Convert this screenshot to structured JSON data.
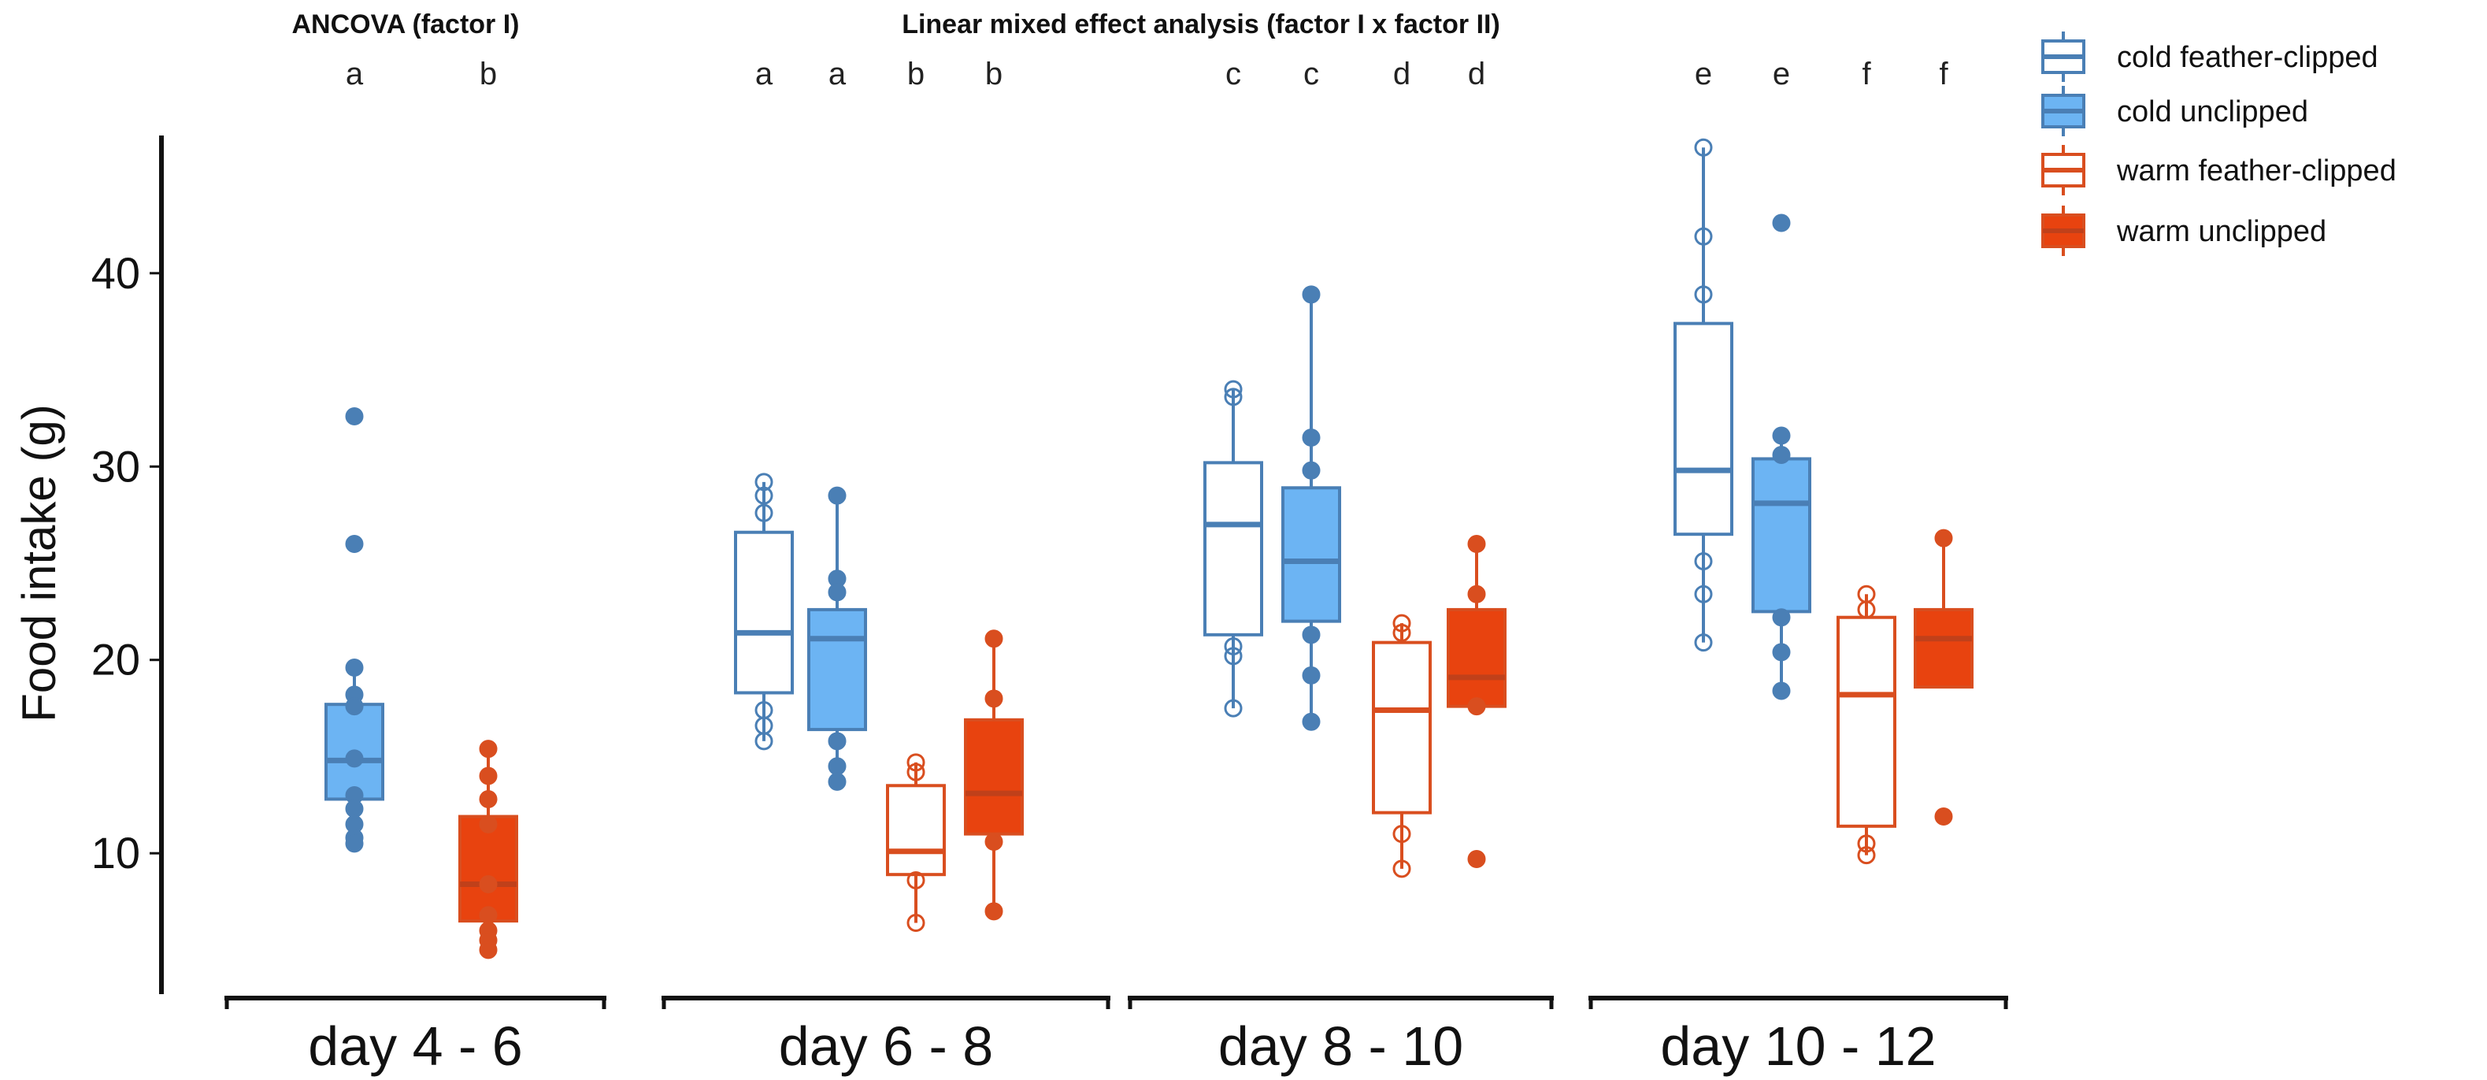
{
  "chart_data": {
    "type": "box",
    "title_left": "ANCOVA (factor I)",
    "title_right": "Linear mixed effect analysis (factor I x factor II)",
    "ylabel": "Food intake (g)",
    "xlabel": "",
    "ylim": [
      3,
      47
    ],
    "yticks": [
      10,
      20,
      30,
      40
    ],
    "colors": {
      "cold": "#4a7fb5",
      "cold_fill": "#6cb4f3",
      "warm": "#d94e1f",
      "warm_fill": "#e8430f"
    },
    "legend": [
      {
        "label": "cold  feather-clipped",
        "temp": "cold",
        "clipped": true
      },
      {
        "label": "cold  unclipped",
        "temp": "cold",
        "clipped": false
      },
      {
        "label": "warm  feather-clipped",
        "temp": "warm",
        "clipped": true
      },
      {
        "label": "warm  unclipped",
        "temp": "warm",
        "clipped": false
      }
    ],
    "groups": [
      {
        "label": "day 4 - 6",
        "boxes": [
          {
            "temp": "cold",
            "clipped": false,
            "letter": "a",
            "min": 10.5,
            "q1": 12.8,
            "median": 14.8,
            "q3": 17.7,
            "max": 19.7,
            "points": [
              32.6,
              26.0,
              19.6,
              18.2,
              17.6,
              14.9,
              13.0,
              12.3,
              11.5,
              10.8,
              10.5
            ]
          },
          {
            "temp": "warm",
            "clipped": false,
            "letter": "b",
            "min": 5.0,
            "q1": 6.5,
            "median": 8.4,
            "q3": 11.9,
            "max": 15.4,
            "points": [
              15.4,
              14.0,
              12.8,
              11.5,
              8.4,
              6.8,
              6.0,
              5.5,
              5.0
            ]
          }
        ]
      },
      {
        "label": "day 6 - 8",
        "boxes": [
          {
            "temp": "cold",
            "clipped": true,
            "letter": "a",
            "min": 15.8,
            "q1": 18.3,
            "median": 21.4,
            "q3": 26.6,
            "max": 29.2,
            "points": [
              29.2,
              28.5,
              27.6,
              17.4,
              16.6,
              15.8
            ]
          },
          {
            "temp": "cold",
            "clipped": false,
            "letter": "a",
            "min": 13.7,
            "q1": 16.4,
            "median": 21.1,
            "q3": 22.6,
            "max": 28.5,
            "points": [
              28.5,
              24.2,
              23.5,
              15.8,
              14.5,
              13.7
            ]
          },
          {
            "temp": "warm",
            "clipped": true,
            "letter": "b",
            "min": 6.4,
            "q1": 8.9,
            "median": 10.1,
            "q3": 13.5,
            "max": 14.7,
            "points": [
              14.7,
              14.2,
              8.6,
              6.4
            ]
          },
          {
            "temp": "warm",
            "clipped": false,
            "letter": "b",
            "min": 7.0,
            "q1": 11.0,
            "median": 13.1,
            "q3": 16.9,
            "max": 21.1,
            "points": [
              21.1,
              18.0,
              10.6,
              7.0
            ]
          }
        ]
      },
      {
        "label": "day 8 - 10",
        "boxes": [
          {
            "temp": "cold",
            "clipped": true,
            "letter": "c",
            "min": 17.5,
            "q1": 21.3,
            "median": 27.0,
            "q3": 30.2,
            "max": 34.0,
            "points": [
              34.0,
              33.6,
              20.7,
              20.2,
              17.5
            ]
          },
          {
            "temp": "cold",
            "clipped": false,
            "letter": "c",
            "min": 16.8,
            "q1": 22.0,
            "median": 25.1,
            "q3": 28.9,
            "max": 38.9,
            "points": [
              38.9,
              31.5,
              29.8,
              21.3,
              19.2,
              16.8
            ]
          },
          {
            "temp": "warm",
            "clipped": true,
            "letter": "d",
            "min": 9.2,
            "q1": 12.1,
            "median": 17.4,
            "q3": 20.9,
            "max": 21.9,
            "points": [
              21.9,
              21.4,
              11.0,
              9.2
            ]
          },
          {
            "temp": "warm",
            "clipped": false,
            "letter": "d",
            "min": 17.3,
            "q1": 17.6,
            "median": 19.1,
            "q3": 22.6,
            "max": 26.0,
            "points": [
              26.0,
              23.4,
              17.6,
              9.7
            ]
          }
        ]
      },
      {
        "label": "day 10 - 12",
        "boxes": [
          {
            "temp": "cold",
            "clipped": true,
            "letter": "e",
            "min": 20.9,
            "q1": 26.5,
            "median": 29.8,
            "q3": 37.4,
            "max": 46.5,
            "points": [
              46.5,
              41.9,
              38.9,
              25.1,
              23.4,
              20.9
            ]
          },
          {
            "temp": "cold",
            "clipped": false,
            "letter": "e",
            "min": 18.4,
            "q1": 22.5,
            "median": 28.1,
            "q3": 30.4,
            "max": 31.6,
            "points": [
              42.6,
              31.6,
              30.6,
              22.2,
              20.4,
              18.4
            ]
          },
          {
            "temp": "warm",
            "clipped": true,
            "letter": "f",
            "min": 9.9,
            "q1": 11.4,
            "median": 18.2,
            "q3": 22.2,
            "max": 23.4,
            "points": [
              23.4,
              22.6,
              10.5,
              9.9
            ]
          },
          {
            "temp": "warm",
            "clipped": false,
            "letter": "f",
            "min": 18.6,
            "q1": 18.6,
            "median": 21.1,
            "q3": 22.6,
            "max": 26.3,
            "points": [
              26.3,
              11.9
            ]
          }
        ]
      }
    ]
  }
}
